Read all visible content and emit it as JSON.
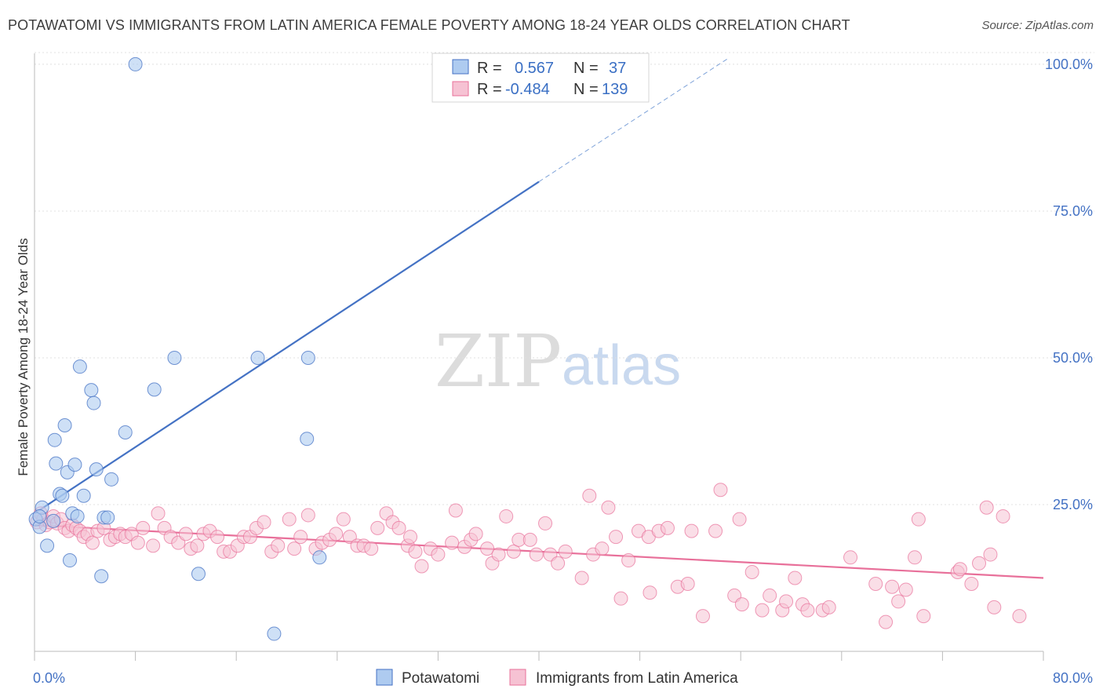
{
  "title": "POTAWATOMI VS IMMIGRANTS FROM LATIN AMERICA FEMALE POVERTY AMONG 18-24 YEAR OLDS CORRELATION CHART",
  "source": "Source: ZipAtlas.com",
  "watermark": {
    "zip": "ZIP",
    "atlas": "atlas"
  },
  "colors": {
    "blue": "#4472c4",
    "blue_fill": "#aecbf0",
    "pink": "#e8709a",
    "pink_fill": "#f6c2d3",
    "grid": "#e0e0e0"
  },
  "legend": {
    "r_label": "R =",
    "n_label": "N =",
    "rows": [
      {
        "r": "0.567",
        "n": "37"
      },
      {
        "r": "-0.484",
        "n": "139"
      }
    ]
  },
  "chart_data": {
    "type": "scatter",
    "title": "POTAWATOMI VS IMMIGRANTS FROM LATIN AMERICA FEMALE POVERTY AMONG 18-24 YEAR OLDS CORRELATION CHART",
    "xlabel": "",
    "ylabel": "Female Poverty Among 18-24 Year Olds",
    "xlim": [
      0,
      80
    ],
    "ylim": [
      0,
      104
    ],
    "x_tick_labels": [
      "0.0%",
      "80.0%"
    ],
    "y_ticks": [
      25,
      50,
      75,
      100
    ],
    "y_tick_labels": [
      "25.0%",
      "50.0%",
      "75.0%",
      "100.0%"
    ],
    "grid": true,
    "legend_position": "bottom",
    "series": [
      {
        "name": "Potawatomi",
        "color": "#4472c4",
        "r": 0.567,
        "n": 37,
        "trend": {
          "x": [
            0,
            40
          ],
          "y": [
            23.5,
            80
          ],
          "dashed_extension": {
            "x": [
              40,
              55
            ],
            "y": [
              80,
              101
            ]
          }
        },
        "points": [
          [
            0.1,
            22.5
          ],
          [
            0.4,
            21.2
          ],
          [
            0.6,
            24.5
          ],
          [
            0.4,
            23.0
          ],
          [
            1.0,
            18.0
          ],
          [
            1.5,
            22.2
          ],
          [
            1.6,
            36.0
          ],
          [
            1.7,
            32.0
          ],
          [
            2.0,
            26.8
          ],
          [
            2.2,
            26.5
          ],
          [
            2.4,
            38.5
          ],
          [
            2.6,
            30.5
          ],
          [
            2.8,
            15.5
          ],
          [
            3.0,
            23.5
          ],
          [
            3.2,
            31.8
          ],
          [
            3.4,
            23.0
          ],
          [
            3.6,
            48.5
          ],
          [
            3.9,
            26.5
          ],
          [
            4.5,
            44.5
          ],
          [
            4.7,
            42.3
          ],
          [
            4.9,
            31.0
          ],
          [
            5.3,
            12.8
          ],
          [
            5.5,
            22.8
          ],
          [
            5.8,
            22.8
          ],
          [
            6.1,
            29.3
          ],
          [
            7.2,
            37.3
          ],
          [
            8.0,
            100.0
          ],
          [
            9.5,
            44.6
          ],
          [
            11.1,
            50.0
          ],
          [
            13.0,
            13.2
          ],
          [
            17.7,
            50.0
          ],
          [
            19.0,
            3.0
          ],
          [
            21.6,
            36.2
          ],
          [
            21.7,
            50.0
          ],
          [
            22.6,
            16.0
          ],
          [
            34.6,
            100.0
          ],
          [
            37.4,
            100.0
          ]
        ]
      },
      {
        "name": "Immigrants from Latin America",
        "color": "#e8709a",
        "r": -0.484,
        "n": 139,
        "trend": {
          "x": [
            0,
            80
          ],
          "y": [
            21.5,
            12.5
          ]
        },
        "points": [
          [
            0.2,
            22.0
          ],
          [
            0.5,
            23.5
          ],
          [
            0.7,
            22.5
          ],
          [
            0.9,
            21.5
          ],
          [
            1.2,
            22.0
          ],
          [
            1.5,
            23.0
          ],
          [
            1.8,
            21.8
          ],
          [
            2.1,
            22.5
          ],
          [
            2.4,
            21.0
          ],
          [
            2.7,
            20.5
          ],
          [
            3.0,
            21.5
          ],
          [
            3.3,
            21.0
          ],
          [
            3.6,
            20.5
          ],
          [
            3.9,
            19.5
          ],
          [
            4.2,
            20.0
          ],
          [
            4.6,
            18.5
          ],
          [
            5.0,
            20.5
          ],
          [
            5.5,
            21.0
          ],
          [
            6.0,
            19.0
          ],
          [
            6.4,
            19.5
          ],
          [
            6.8,
            20.0
          ],
          [
            7.2,
            19.5
          ],
          [
            7.7,
            20.0
          ],
          [
            8.2,
            18.5
          ],
          [
            8.6,
            21.0
          ],
          [
            9.4,
            18.0
          ],
          [
            9.8,
            23.5
          ],
          [
            10.3,
            21.0
          ],
          [
            10.8,
            19.5
          ],
          [
            11.4,
            18.5
          ],
          [
            12.0,
            20.0
          ],
          [
            12.4,
            17.5
          ],
          [
            12.9,
            18.0
          ],
          [
            13.4,
            20.0
          ],
          [
            13.9,
            20.5
          ],
          [
            14.5,
            19.5
          ],
          [
            15.0,
            17.0
          ],
          [
            15.5,
            17.0
          ],
          [
            16.1,
            18.0
          ],
          [
            16.6,
            19.5
          ],
          [
            17.1,
            19.5
          ],
          [
            17.6,
            21.0
          ],
          [
            18.2,
            22.0
          ],
          [
            18.8,
            17.0
          ],
          [
            19.3,
            18.0
          ],
          [
            20.2,
            22.5
          ],
          [
            20.6,
            17.5
          ],
          [
            21.1,
            19.5
          ],
          [
            21.7,
            23.2
          ],
          [
            22.3,
            17.5
          ],
          [
            22.8,
            18.5
          ],
          [
            23.4,
            19.0
          ],
          [
            23.9,
            20.0
          ],
          [
            24.5,
            22.5
          ],
          [
            25.0,
            19.5
          ],
          [
            25.6,
            18.0
          ],
          [
            26.1,
            18.0
          ],
          [
            26.7,
            17.5
          ],
          [
            27.2,
            21.0
          ],
          [
            27.9,
            23.5
          ],
          [
            28.4,
            22.0
          ],
          [
            28.9,
            21.0
          ],
          [
            29.6,
            18.0
          ],
          [
            29.8,
            19.5
          ],
          [
            30.2,
            17.0
          ],
          [
            30.7,
            14.5
          ],
          [
            31.4,
            17.5
          ],
          [
            32.0,
            16.5
          ],
          [
            33.1,
            18.5
          ],
          [
            33.4,
            24.0
          ],
          [
            34.1,
            17.8
          ],
          [
            34.6,
            19.0
          ],
          [
            35.0,
            20.0
          ],
          [
            35.9,
            17.5
          ],
          [
            36.3,
            15.0
          ],
          [
            36.8,
            16.5
          ],
          [
            37.4,
            23.0
          ],
          [
            38.0,
            17.0
          ],
          [
            38.4,
            19.0
          ],
          [
            39.3,
            19.0
          ],
          [
            39.8,
            16.5
          ],
          [
            40.5,
            21.8
          ],
          [
            40.9,
            16.5
          ],
          [
            41.5,
            15.0
          ],
          [
            42.1,
            17.0
          ],
          [
            43.4,
            12.5
          ],
          [
            44.0,
            26.5
          ],
          [
            44.3,
            16.5
          ],
          [
            45.0,
            17.5
          ],
          [
            45.5,
            24.5
          ],
          [
            46.1,
            19.5
          ],
          [
            46.5,
            9.0
          ],
          [
            47.1,
            15.5
          ],
          [
            47.9,
            20.5
          ],
          [
            48.8,
            10.0
          ],
          [
            48.7,
            19.5
          ],
          [
            49.5,
            20.5
          ],
          [
            50.2,
            21.0
          ],
          [
            51.0,
            11.0
          ],
          [
            51.8,
            11.5
          ],
          [
            52.1,
            20.5
          ],
          [
            53.0,
            6.0
          ],
          [
            54.0,
            20.5
          ],
          [
            54.4,
            27.5
          ],
          [
            55.5,
            9.5
          ],
          [
            55.9,
            22.5
          ],
          [
            56.1,
            8.0
          ],
          [
            56.9,
            13.5
          ],
          [
            57.7,
            7.0
          ],
          [
            58.3,
            9.5
          ],
          [
            59.3,
            7.0
          ],
          [
            59.6,
            8.5
          ],
          [
            60.3,
            12.5
          ],
          [
            60.9,
            8.0
          ],
          [
            61.3,
            7.0
          ],
          [
            62.5,
            7.0
          ],
          [
            63.0,
            7.5
          ],
          [
            64.7,
            16.0
          ],
          [
            66.7,
            11.5
          ],
          [
            67.5,
            5.0
          ],
          [
            68.0,
            11.0
          ],
          [
            68.5,
            8.5
          ],
          [
            69.1,
            10.5
          ],
          [
            69.8,
            16.0
          ],
          [
            70.1,
            22.5
          ],
          [
            70.5,
            6.0
          ],
          [
            73.2,
            13.5
          ],
          [
            73.4,
            14.0
          ],
          [
            74.3,
            11.5
          ],
          [
            74.9,
            15.0
          ],
          [
            75.5,
            24.5
          ],
          [
            75.8,
            16.5
          ],
          [
            76.1,
            7.5
          ],
          [
            76.8,
            23.0
          ],
          [
            78.1,
            6.0
          ]
        ]
      }
    ]
  }
}
